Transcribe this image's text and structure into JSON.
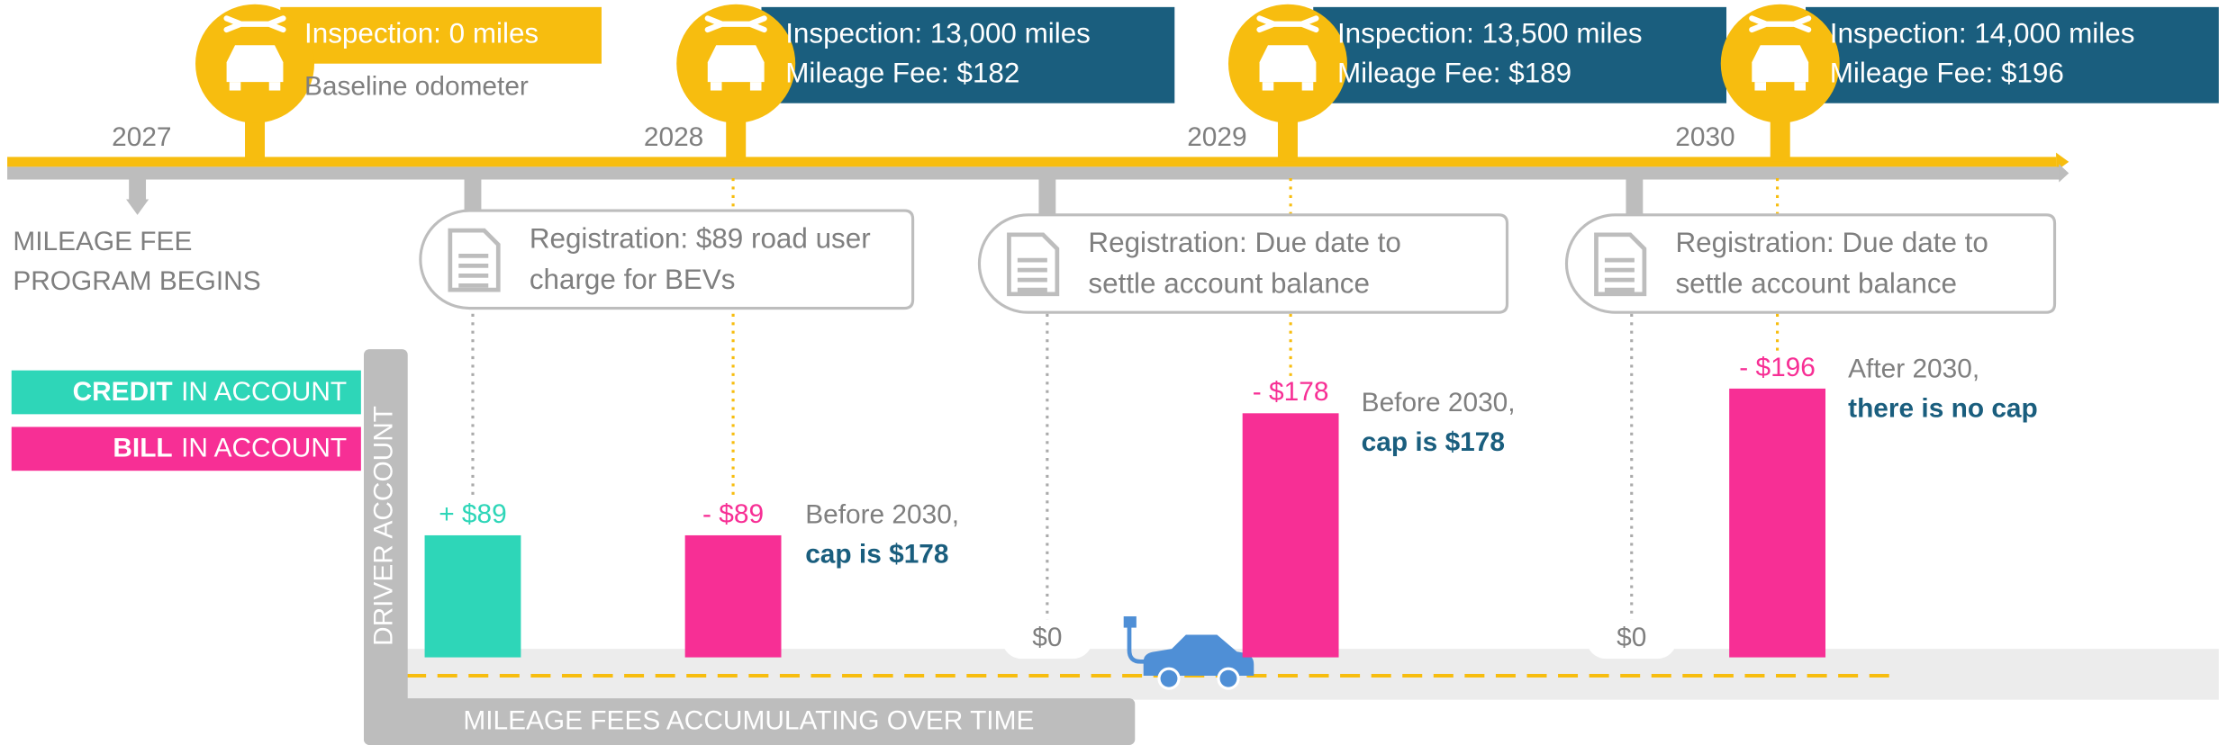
{
  "timeline": {
    "years": [
      "2027",
      "2028",
      "2029",
      "2030"
    ],
    "start": [
      "MILEAGE FEE",
      "PROGRAM BEGINS"
    ],
    "inspections": [
      {
        "lines": [
          "Inspection: 0 miles"
        ],
        "note": "Baseline odometer"
      },
      {
        "lines": [
          "Inspection: 13,000 miles",
          "Mileage Fee: $182"
        ]
      },
      {
        "lines": [
          "Inspection: 13,500 miles",
          "Mileage Fee: $189"
        ]
      },
      {
        "lines": [
          "Inspection: 14,000 miles",
          "Mileage Fee: $196"
        ]
      }
    ],
    "registrations": [
      {
        "lines": [
          "Registration: $89 road user",
          "charge for BEVs"
        ]
      },
      {
        "lines": [
          "Registration: Due date to",
          "settle account balance"
        ]
      },
      {
        "lines": [
          "Registration: Due date to",
          "settle account balance"
        ]
      }
    ]
  },
  "legend": [
    {
      "bold": "CREDIT",
      "text": "IN ACCOUNT",
      "color": "#2ed6b8"
    },
    {
      "bold": "BILL",
      "text": "IN ACCOUNT",
      "color": "#f72f95"
    }
  ],
  "account": {
    "axis_y": "DRIVER ACCOUNT",
    "axis_x": "MILEAGE FEES ACCUMULATING OVER TIME",
    "bars": [
      {
        "value": 89,
        "label": "+ $89",
        "color": "#2ed6b8"
      },
      {
        "value": -89,
        "label": "- $89",
        "color": "#f72f95"
      },
      {
        "value": 0,
        "label": "$0",
        "color": "#888888"
      },
      {
        "value": -178,
        "label": "- $178",
        "color": "#f72f95"
      },
      {
        "value": 0,
        "label": "$0",
        "color": "#888888"
      },
      {
        "value": -196,
        "label": "- $196",
        "color": "#f72f95"
      }
    ]
  },
  "notes": [
    {
      "lines": [
        "Before 2030,",
        "cap is $178"
      ]
    },
    {
      "lines": [
        "Before 2030,",
        "cap is $178"
      ]
    },
    {
      "lines": [
        "After 2030,",
        "there is no cap"
      ]
    }
  ]
}
